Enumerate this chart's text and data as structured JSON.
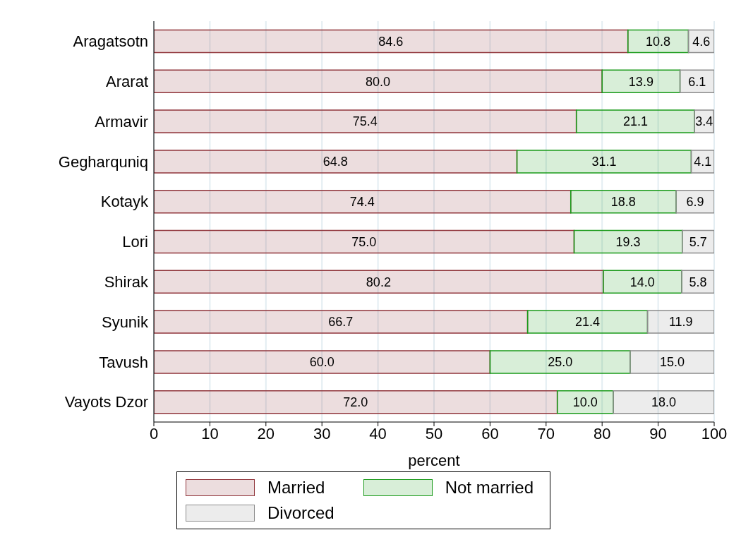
{
  "chart_data": {
    "type": "bar",
    "orientation": "horizontal",
    "stacked": true,
    "xlabel": "percent",
    "categories": [
      "Aragatsotn",
      "Ararat",
      "Armavir",
      "Gegharquniq",
      "Kotayk",
      "Lori",
      "Shirak",
      "Syunik",
      "Tavush",
      "Vayots Dzor"
    ],
    "series": [
      {
        "name": "Married",
        "color": "#90353b",
        "values": [
          84.6,
          80.0,
          75.4,
          64.8,
          74.4,
          75.0,
          80.2,
          66.7,
          60.0,
          72.0
        ],
        "value_labels": [
          "84.6",
          "80.0",
          "75.4",
          "64.8",
          "74.4",
          "75.0",
          "80.2",
          "66.7",
          "60.0",
          "72.0"
        ]
      },
      {
        "name": "Not married",
        "color": "#1a9a1a",
        "values": [
          10.8,
          13.9,
          21.1,
          31.1,
          18.8,
          19.3,
          14.0,
          21.4,
          25.0,
          10.0
        ],
        "value_labels": [
          "10.8",
          "13.9",
          "21.1",
          "31.1",
          "18.8",
          "19.3",
          "14.0",
          "21.4",
          "25.0",
          "10.0"
        ]
      },
      {
        "name": "Divorced",
        "color": "#8c8c8c",
        "values": [
          4.6,
          6.1,
          3.4,
          4.1,
          6.9,
          5.7,
          5.8,
          11.9,
          15.0,
          18.0
        ],
        "value_labels": [
          "4.6",
          "6.1",
          "3.4",
          "4.1",
          "6.9",
          "5.7",
          "5.8",
          "11.9",
          "15.0",
          "18.0"
        ]
      }
    ],
    "xlim": [
      0,
      100
    ],
    "xticks": [
      0,
      10,
      20,
      30,
      40,
      50,
      60,
      70,
      80,
      90,
      100
    ],
    "grid": "x",
    "legend": "bottom"
  }
}
